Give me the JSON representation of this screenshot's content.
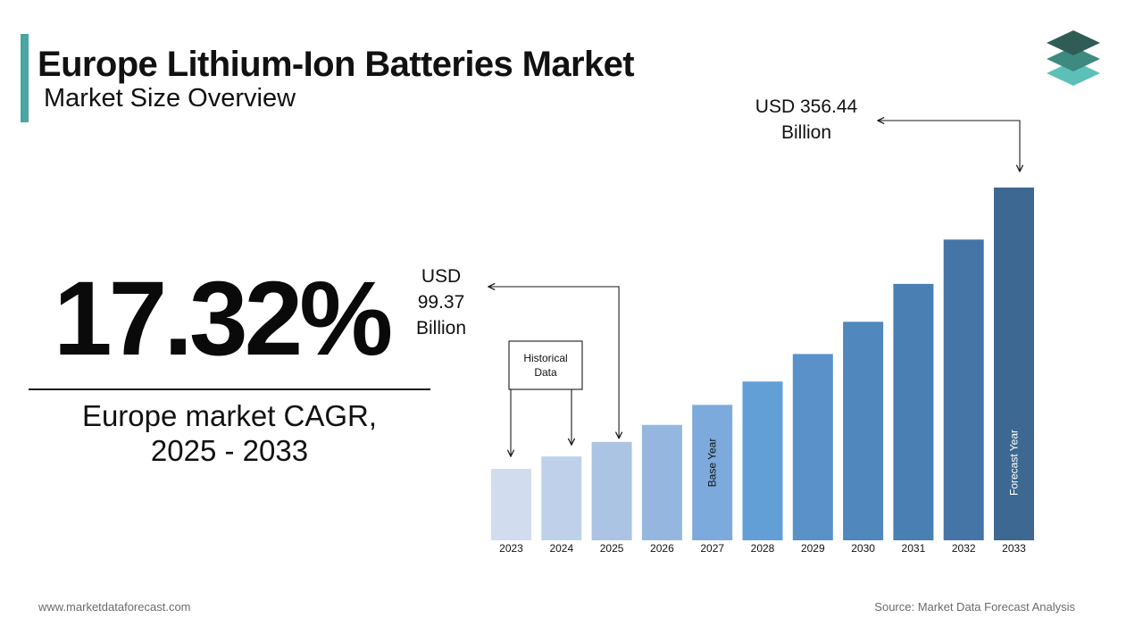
{
  "header": {
    "title": "Europe Lithium-Ion Batteries Market",
    "subtitle": "Market Size Overview"
  },
  "cagr": {
    "value": "17.32%",
    "label_line1": "Europe market CAGR,",
    "label_line2": "2025 - 2033"
  },
  "footer": {
    "website": "www.marketdataforecast.com",
    "source": "Source: Market Data Forecast Analysis"
  },
  "colors": {
    "accent": "#4aa6a3",
    "logo_top": "#2f5d55",
    "logo_mid": "#3e8a80",
    "logo_bottom": "#5cc0b8",
    "bar_colors": [
      "#d1ddef",
      "#bfd1ea",
      "#abc4e4",
      "#95b7df",
      "#7daadc",
      "#629fd7",
      "#5a91c8",
      "#5087bd",
      "#4a7fb3",
      "#4475a6",
      "#3d6891"
    ]
  },
  "logo": {
    "icon": "stacked-layers-icon"
  },
  "chart_data": {
    "type": "bar",
    "categories": [
      "2023",
      "2024",
      "2025",
      "2026",
      "2027",
      "2028",
      "2029",
      "2030",
      "2031",
      "2032",
      "2033"
    ],
    "values": [
      84.7,
      99.37,
      116.6,
      136.8,
      160.5,
      188.2,
      220.8,
      259.0,
      303.9,
      356.44,
      418.1
    ],
    "ylim": [
      0,
      420
    ],
    "grid": false,
    "bar_labels": {
      "2027": "Base Year",
      "2033": "Forecast Year"
    },
    "annotations": {
      "historical_box": "Historical\nData",
      "start_value": "USD\n99.37\nBillion",
      "end_value": "USD 356.44\nBillion"
    }
  }
}
